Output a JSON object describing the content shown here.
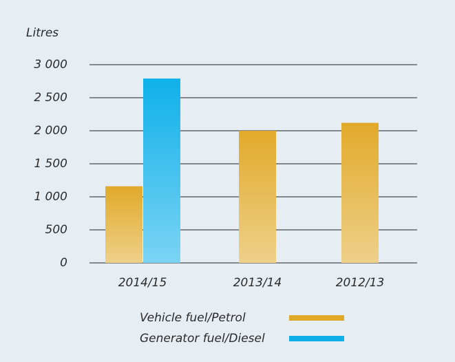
{
  "chart_data": {
    "type": "bar",
    "y_label": "Litres",
    "categories": [
      "2014/15",
      "2013/14",
      "2012/13"
    ],
    "series": [
      {
        "name": "Vehicle fuel/Petrol",
        "color": "#e1aa2a",
        "values": [
          1160,
          2000,
          2120
        ]
      },
      {
        "name": "Generator fuel/Diesel",
        "color": "#0fb0ea",
        "values": [
          2790,
          null,
          null
        ]
      }
    ],
    "ylim": [
      0,
      3000
    ],
    "yticks": [
      0,
      {
        "value": 500,
        "label": "500"
      },
      {
        "value": 1000,
        "label": "1 000"
      },
      {
        "value": 1500,
        "label": "1 500"
      },
      {
        "value": 2000,
        "label": "2 000"
      },
      {
        "value": 2500,
        "label": "2 500"
      },
      {
        "value": 3000,
        "label": "3 000"
      }
    ],
    "grid": true
  }
}
